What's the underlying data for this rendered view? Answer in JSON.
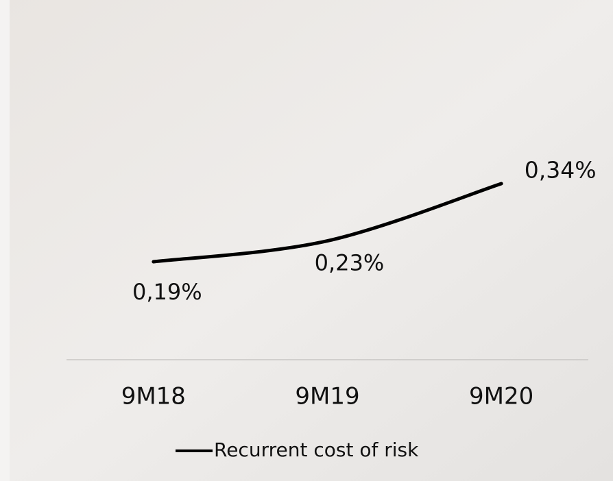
{
  "chart_data": {
    "type": "line",
    "categories": [
      "9M18",
      "9M19",
      "9M20"
    ],
    "series": [
      {
        "name": "Recurrent cost of risk",
        "color": "#000000",
        "values": [
          0.19,
          0.23,
          0.34
        ],
        "value_labels": [
          "0,19%",
          "0,23%",
          "0,34%"
        ]
      }
    ]
  }
}
